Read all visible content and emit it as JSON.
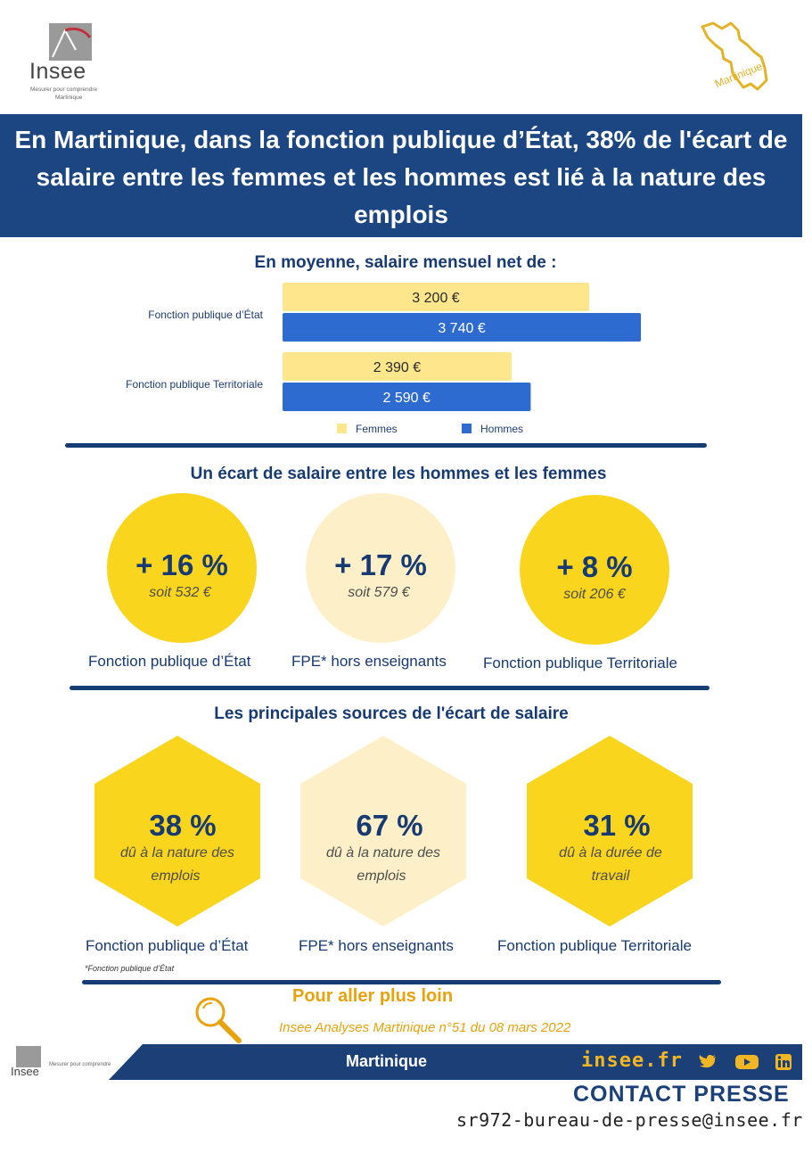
{
  "header": {
    "logo_word": "Insee",
    "logo_tagline": "Mesurer pour comprendre",
    "logo_region": "Martinique",
    "island_label": "Martinique"
  },
  "banner": {
    "title": "En Martinique, dans la fonction publique d’État, 38% de l'écart de salaire entre les femmes et les hommes est lié à la nature des emplois"
  },
  "chart_data": {
    "type": "bar",
    "orientation": "horizontal",
    "title": "En moyenne, salaire mensuel net de :",
    "categories": [
      "Fonction publique d’État",
      "Fonction publique Territoriale"
    ],
    "series": [
      {
        "name": "Femmes",
        "values": [
          3200,
          2390
        ],
        "labels": [
          "3 200 €",
          "2 390 €"
        ],
        "color": "#fde68c"
      },
      {
        "name": "Hommes",
        "values": [
          3740,
          2590
        ],
        "labels": [
          "3 740 €",
          "2 590 €"
        ],
        "color": "#2e6bd1"
      }
    ],
    "xlim": [
      0,
      4000
    ],
    "legend": "bottom",
    "grid": false
  },
  "gap_section": {
    "title": "Un écart de salaire entre les hommes et les femmes",
    "items": [
      {
        "value": "+ 16 %",
        "amount": "soit 532 €",
        "caption": "Fonction publique d’État",
        "color": "#f9d51e"
      },
      {
        "value": "+ 17 %",
        "amount": "soit 579 €",
        "caption": "FPE*  hors enseignants",
        "color": "#fdf0c8"
      },
      {
        "value": "+ 8 %",
        "amount": "soit 206 €",
        "caption": "Fonction publique Territoriale",
        "color": "#f9d51e"
      }
    ]
  },
  "sources_section": {
    "title": "Les principales sources de l'écart de salaire",
    "items": [
      {
        "value": "38 %",
        "line1": "dû à la nature des",
        "line2": "emplois",
        "caption": "Fonction publique d’État",
        "color": "#f9d51e"
      },
      {
        "value": "67 %",
        "line1": "dû à la nature des",
        "line2": "emplois",
        "caption": "FPE* hors enseignants",
        "color": "#fdf0c8"
      },
      {
        "value": "31 %",
        "line1": "dû à la durée de",
        "line2": "travail",
        "caption": "Fonction publique Territoriale",
        "color": "#f9d51e"
      }
    ],
    "footnote": "*Fonction publique d’État"
  },
  "more": {
    "title": "Pour aller plus loin",
    "reference": "Insee Analyses Martinique n°51 du 08 mars 2022"
  },
  "footer": {
    "logo_word": "Insee",
    "logo_tagline": "Mesurer pour comprendre",
    "region": "Martinique",
    "site": "insee.fr",
    "social_icons": [
      "twitter-icon",
      "youtube-icon",
      "linkedin-icon"
    ]
  },
  "contact": {
    "title": "CONTACT PRESSE",
    "email": "sr972-bureau-de-presse@insee.fr"
  }
}
